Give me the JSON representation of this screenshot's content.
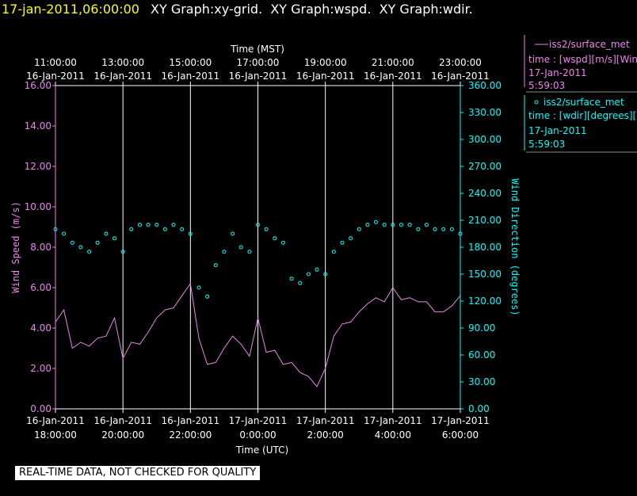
{
  "header": {
    "timestamp": "17-jan-2011,06:00:00",
    "graphs": "XY Graph:xy-grid.  XY Graph:wspd.  XY Graph:wdir."
  },
  "notice": "REAL-TIME DATA, NOT CHECKED FOR QUALITY",
  "legend": {
    "wspd": {
      "line1": "iss2/surface_met",
      "line2": "time : [wspd][m/s][Wind",
      "line3": "17-Jan-2011",
      "line4": "5:59:03"
    },
    "wdir": {
      "line1": "iss2/surface_met",
      "line2": "time : [wdir][degrees][W",
      "line3": "17-Jan-2011",
      "line4": "5:59:03"
    }
  },
  "colors": {
    "wspd": "#ee82ee",
    "wdir": "#00ffff",
    "date_text": "#ffff00",
    "grid": "#ffffff",
    "background": "#000000"
  },
  "chart_data": {
    "type": "line",
    "top_axis": {
      "label": "Time (MST)",
      "ticks": [
        {
          "time": "11:00:00",
          "date": "16-Jan-2011"
        },
        {
          "time": "13:00:00",
          "date": "16-Jan-2011"
        },
        {
          "time": "15:00:00",
          "date": "16-Jan-2011"
        },
        {
          "time": "17:00:00",
          "date": "16-Jan-2011"
        },
        {
          "time": "19:00:00",
          "date": "16-Jan-2011"
        },
        {
          "time": "21:00:00",
          "date": "16-Jan-2011"
        },
        {
          "time": "23:00:00",
          "date": "16-Jan-2011"
        }
      ]
    },
    "bottom_axis": {
      "label": "Time (UTC)",
      "ticks": [
        {
          "date": "16-Jan-2011",
          "time": "18:00:00"
        },
        {
          "date": "16-Jan-2011",
          "time": "20:00:00"
        },
        {
          "date": "16-Jan-2011",
          "time": "22:00:00"
        },
        {
          "date": "17-Jan-2011",
          "time": "0:00:00"
        },
        {
          "date": "17-Jan-2011",
          "time": "2:00:00"
        },
        {
          "date": "17-Jan-2011",
          "time": "4:00:00"
        },
        {
          "date": "17-Jan-2011",
          "time": "6:00:00"
        }
      ]
    },
    "xlim_utc": [
      "2011-01-16 18:00",
      "2011-01-17 06:00"
    ],
    "left_axis": {
      "label": "Wind Speed (m/s)",
      "ylim": [
        0,
        16
      ],
      "ticks": [
        "0.00",
        "2.00",
        "4.00",
        "6.00",
        "8.00",
        "10.00",
        "12.00",
        "14.00",
        "16.00"
      ]
    },
    "right_axis": {
      "label": "Wind Direction (degrees)",
      "ylim": [
        0,
        360
      ],
      "ticks": [
        "0.00",
        "30.00",
        "60.00",
        "90.00",
        "120.00",
        "150.00",
        "180.00",
        "210.00",
        "240.00",
        "270.00",
        "300.00",
        "330.00",
        "360.00"
      ]
    },
    "grid": "vertical lines at each 2-hour tick",
    "series": [
      {
        "name": "iss2/surface_met wspd",
        "style": "line",
        "axis": "left",
        "x": [
          "2011-01-16 18:00",
          "2011-01-16 18:15",
          "2011-01-16 18:30",
          "2011-01-16 18:45",
          "2011-01-16 19:00",
          "2011-01-16 19:15",
          "2011-01-16 19:30",
          "2011-01-16 19:45",
          "2011-01-16 20:00",
          "2011-01-16 20:15",
          "2011-01-16 20:30",
          "2011-01-16 20:45",
          "2011-01-16 21:00",
          "2011-01-16 21:15",
          "2011-01-16 21:30",
          "2011-01-16 21:45",
          "2011-01-16 22:00",
          "2011-01-16 22:15",
          "2011-01-16 22:30",
          "2011-01-16 22:45",
          "2011-01-16 23:00",
          "2011-01-16 23:15",
          "2011-01-16 23:30",
          "2011-01-16 23:45",
          "2011-01-17 00:00",
          "2011-01-17 00:15",
          "2011-01-17 00:30",
          "2011-01-17 00:45",
          "2011-01-17 01:00",
          "2011-01-17 01:15",
          "2011-01-17 01:30",
          "2011-01-17 01:45",
          "2011-01-17 02:00",
          "2011-01-17 02:15",
          "2011-01-17 02:30",
          "2011-01-17 02:45",
          "2011-01-17 03:00",
          "2011-01-17 03:15",
          "2011-01-17 03:30",
          "2011-01-17 03:45",
          "2011-01-17 04:00",
          "2011-01-17 04:15",
          "2011-01-17 04:30",
          "2011-01-17 04:45",
          "2011-01-17 05:00",
          "2011-01-17 05:15",
          "2011-01-17 05:30",
          "2011-01-17 05:45",
          "2011-01-17 06:00"
        ],
        "values": [
          4.3,
          4.9,
          3.0,
          3.3,
          3.1,
          3.5,
          3.6,
          4.5,
          2.5,
          3.3,
          3.2,
          3.8,
          4.5,
          4.9,
          5.0,
          5.6,
          6.2,
          3.5,
          2.2,
          2.3,
          3.0,
          3.6,
          3.2,
          2.6,
          4.5,
          2.8,
          2.9,
          2.2,
          2.3,
          1.8,
          1.6,
          1.1,
          2.0,
          3.6,
          4.2,
          4.3,
          4.8,
          5.2,
          5.5,
          5.3,
          6.0,
          5.4,
          5.5,
          5.3,
          5.3,
          4.8,
          4.8,
          5.1,
          5.6
        ]
      },
      {
        "name": "iss2/surface_met wdir",
        "style": "scatter",
        "axis": "right",
        "x": [
          "2011-01-16 18:00",
          "2011-01-16 18:15",
          "2011-01-16 18:30",
          "2011-01-16 18:45",
          "2011-01-16 19:00",
          "2011-01-16 19:15",
          "2011-01-16 19:30",
          "2011-01-16 19:45",
          "2011-01-16 20:00",
          "2011-01-16 20:15",
          "2011-01-16 20:30",
          "2011-01-16 20:45",
          "2011-01-16 21:00",
          "2011-01-16 21:15",
          "2011-01-16 21:30",
          "2011-01-16 21:45",
          "2011-01-16 22:00",
          "2011-01-16 22:15",
          "2011-01-16 22:30",
          "2011-01-16 22:45",
          "2011-01-16 23:00",
          "2011-01-16 23:15",
          "2011-01-16 23:30",
          "2011-01-16 23:45",
          "2011-01-17 00:00",
          "2011-01-17 00:15",
          "2011-01-17 00:30",
          "2011-01-17 00:45",
          "2011-01-17 01:00",
          "2011-01-17 01:15",
          "2011-01-17 01:30",
          "2011-01-17 01:45",
          "2011-01-17 02:00",
          "2011-01-17 02:15",
          "2011-01-17 02:30",
          "2011-01-17 02:45",
          "2011-01-17 03:00",
          "2011-01-17 03:15",
          "2011-01-17 03:30",
          "2011-01-17 03:45",
          "2011-01-17 04:00",
          "2011-01-17 04:15",
          "2011-01-17 04:30",
          "2011-01-17 04:45",
          "2011-01-17 05:00",
          "2011-01-17 05:15",
          "2011-01-17 05:30",
          "2011-01-17 05:45",
          "2011-01-17 06:00"
        ],
        "values": [
          200,
          195,
          185,
          180,
          175,
          185,
          195,
          190,
          175,
          200,
          205,
          205,
          205,
          200,
          205,
          200,
          195,
          135,
          125,
          160,
          175,
          195,
          180,
          175,
          205,
          200,
          190,
          185,
          145,
          140,
          150,
          155,
          150,
          175,
          185,
          190,
          200,
          205,
          208,
          205,
          205,
          205,
          205,
          200,
          205,
          200,
          200,
          200,
          195
        ]
      }
    ]
  }
}
